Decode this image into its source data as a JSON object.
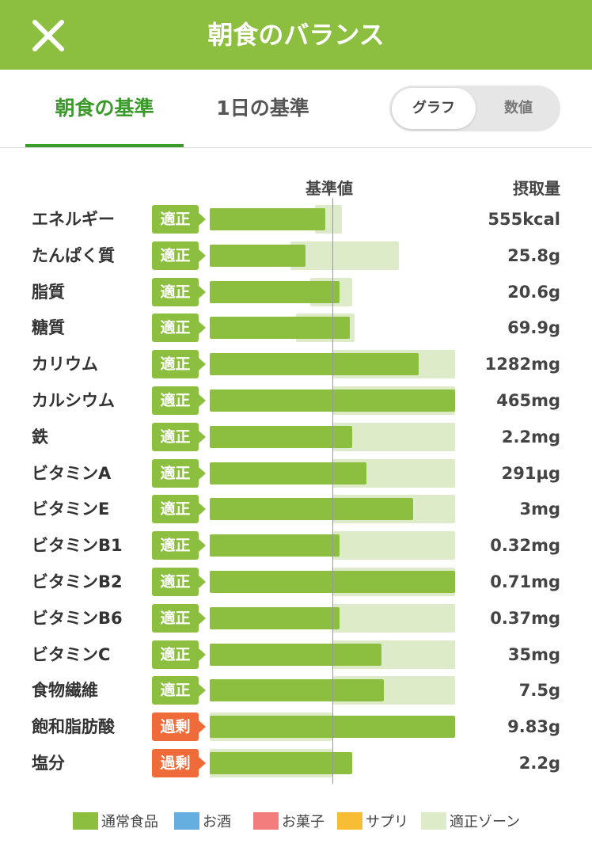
{
  "header": {
    "title": "朝食のバランス"
  },
  "tabs": [
    {
      "label": "朝食の基準",
      "active": true
    },
    {
      "label": "1日の基準",
      "active": false
    }
  ],
  "view_toggle": {
    "graph_label": "グラフ",
    "number_label": "数値",
    "selected": "グラフ"
  },
  "columns": {
    "base_label": "基準値",
    "intake_label": "摂取量"
  },
  "colors": {
    "header": "#8cbf3f",
    "active_tab": "#3a9a2a",
    "bar": "#8cbf3f",
    "zone": "#ddebc8",
    "badge_ok": "#8cbf3f",
    "badge_over": "#f06b3a"
  },
  "nutrients": [
    {
      "name": "エネルギー",
      "status": "適正",
      "value": "555kcal",
      "level": 0.47,
      "zone": [
        0.43,
        0.54
      ]
    },
    {
      "name": "たんぱく質",
      "status": "適正",
      "value": "25.8g",
      "level": 0.39,
      "zone": [
        0.33,
        0.77
      ]
    },
    {
      "name": "脂質",
      "status": "適正",
      "value": "20.6g",
      "level": 0.53,
      "zone": [
        0.41,
        0.58
      ]
    },
    {
      "name": "糖質",
      "status": "適正",
      "value": "69.9g",
      "level": 0.57,
      "zone": [
        0.35,
        0.59
      ]
    },
    {
      "name": "カリウム",
      "status": "適正",
      "value": "1282mg",
      "level": 0.85,
      "zone": [
        0.5,
        1.0
      ]
    },
    {
      "name": "カルシウム",
      "status": "適正",
      "value": "465mg",
      "level": 1.0,
      "zone": [
        0.5,
        1.0
      ]
    },
    {
      "name": "鉄",
      "status": "適正",
      "value": "2.2mg",
      "level": 0.58,
      "zone": [
        0.5,
        1.0
      ]
    },
    {
      "name": "ビタミンA",
      "status": "適正",
      "value": "291µg",
      "level": 0.64,
      "zone": [
        0.5,
        1.0
      ]
    },
    {
      "name": "ビタミンE",
      "status": "適正",
      "value": "3mg",
      "level": 0.83,
      "zone": [
        0.5,
        1.0
      ]
    },
    {
      "name": "ビタミンB1",
      "status": "適正",
      "value": "0.32mg",
      "level": 0.53,
      "zone": [
        0.5,
        1.0
      ]
    },
    {
      "name": "ビタミンB2",
      "status": "適正",
      "value": "0.71mg",
      "level": 1.0,
      "zone": [
        0.5,
        1.0
      ]
    },
    {
      "name": "ビタミンB6",
      "status": "適正",
      "value": "0.37mg",
      "level": 0.53,
      "zone": [
        0.5,
        1.0
      ]
    },
    {
      "name": "ビタミンC",
      "status": "適正",
      "value": "35mg",
      "level": 0.7,
      "zone": [
        0.5,
        1.0
      ]
    },
    {
      "name": "食物繊維",
      "status": "適正",
      "value": "7.5g",
      "level": 0.71,
      "zone": [
        0.5,
        1.0
      ]
    },
    {
      "name": "飽和脂肪酸",
      "status": "過剰",
      "value": "9.83g",
      "level": 1.0,
      "zone": [
        0.0,
        0.5
      ]
    },
    {
      "name": "塩分",
      "status": "過剰",
      "value": "2.2g",
      "level": 0.58,
      "zone": [
        0.0,
        0.5
      ]
    }
  ],
  "legend": [
    {
      "label": "通常食品",
      "color": "#8cbf3f"
    },
    {
      "label": "お酒",
      "color": "#64aee0"
    },
    {
      "label": "お菓子",
      "color": "#f37c7c"
    },
    {
      "label": "サプリ",
      "color": "#f7bd34"
    },
    {
      "label": "適正ゾーン",
      "color": "#ddebc8"
    }
  ]
}
